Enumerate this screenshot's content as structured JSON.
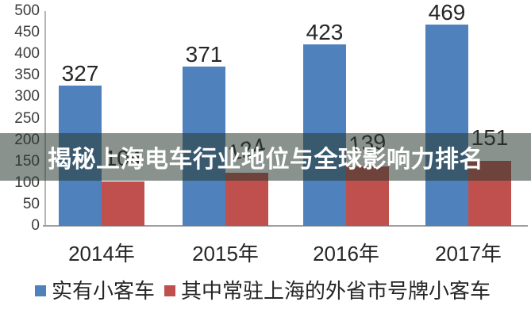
{
  "overlay": {
    "title": "揭秘上海电车行业地位与全球影响力排名",
    "bg_color": "rgba(40,57,48,0.55)",
    "text_color": "#ffffff"
  },
  "chart_data": {
    "type": "bar",
    "title": "",
    "xlabel": "",
    "ylabel": "",
    "categories": [
      "2014年",
      "2015年",
      "2016年",
      "2017年"
    ],
    "series": [
      {
        "name": "实有小客车",
        "color": "#4f81bd",
        "values": [
          327,
          371,
          423,
          469
        ],
        "value_labels": [
          "327",
          "371",
          "423",
          "469"
        ]
      },
      {
        "name": "其中常驻上海的外省市号牌小客车",
        "color": "#c0504d",
        "values": [
          104,
          124,
          139,
          151
        ],
        "value_labels": [
          "104",
          "124",
          "139",
          "151"
        ],
        "label_rotation_deg": [
          0,
          -13,
          -6,
          0
        ]
      }
    ],
    "ylim": [
      0,
      500
    ],
    "ytick_step": 50,
    "yticks": [
      "500",
      "450",
      "400",
      "350",
      "300",
      "250",
      "200",
      "150",
      "100",
      "50",
      "0"
    ],
    "grid": false,
    "legend_position": "bottom",
    "value_labels_shown": true,
    "label_color": "#262626",
    "axis_color": "#9e9e9e"
  }
}
